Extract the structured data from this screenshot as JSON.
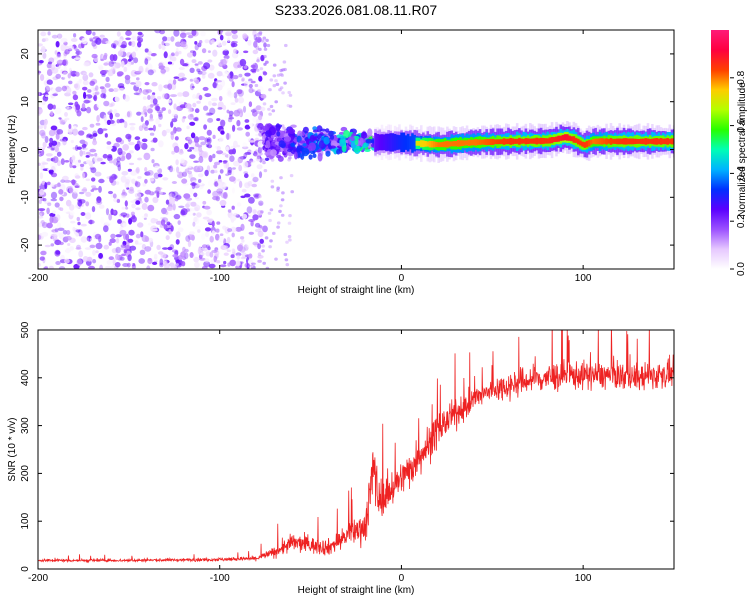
{
  "title": "S233.2026.081.08.11.R07",
  "chart_data": [
    {
      "type": "heatmap",
      "xlabel": "Height of straight line (km)",
      "ylabel": "Frequency (Hz)",
      "xlim": [
        -200,
        150
      ],
      "ylim": [
        -25,
        25
      ],
      "x_ticks": [
        -200,
        -100,
        0,
        100
      ],
      "y_ticks": [
        -20,
        -10,
        0,
        10,
        20
      ],
      "colorbar": {
        "label": "Normalized spectral amplitude",
        "range": [
          0,
          1
        ],
        "ticks": [
          "0.0",
          "0.2",
          "0.4",
          "0.6",
          "0.8"
        ],
        "tick_values": [
          0.0,
          0.2,
          0.4,
          0.6,
          0.8
        ]
      },
      "noise_region_x": [
        -200,
        -75
      ],
      "noise_amplitude_range": [
        0.0,
        0.25
      ],
      "transition_region_x": [
        -75,
        -15
      ],
      "transition_frequency_spread_hz": [
        -8,
        10
      ],
      "signal_band": {
        "x": [
          -15,
          0,
          20,
          40,
          60,
          80,
          90,
          95,
          100,
          105,
          120,
          150
        ],
        "center_frequency_hz": [
          1.5,
          1.5,
          1.0,
          1.5,
          1.7,
          1.8,
          2.6,
          2.0,
          0.9,
          1.7,
          1.7,
          1.7
        ],
        "peak_amplitude": [
          0.5,
          0.7,
          0.85,
          0.85,
          0.9,
          0.9,
          0.95,
          0.9,
          0.9,
          0.85,
          0.9,
          0.9
        ]
      },
      "colors": [
        "#ffffff",
        "#e6c8ff",
        "#9b50ff",
        "#5a00ff",
        "#0030ff",
        "#00b4ff",
        "#00ffb4",
        "#28ff00",
        "#b4ff00",
        "#ffcc00",
        "#ff4000",
        "#ff0040",
        "#ff1a78"
      ]
    },
    {
      "type": "line",
      "xlabel": "Height of straight line (km)",
      "ylabel": "SNR (10 * v/v)",
      "xlim": [
        -200,
        150
      ],
      "ylim": [
        0,
        500
      ],
      "x_ticks": [
        -200,
        -100,
        0,
        100
      ],
      "y_ticks": [
        0,
        100,
        200,
        300,
        400,
        500
      ],
      "series": [
        {
          "name": "SNR",
          "color": "#ee2222",
          "x": [
            -200,
            -150,
            -100,
            -80,
            -70,
            -60,
            -50,
            -40,
            -30,
            -20,
            -17,
            -15,
            -13,
            -10,
            -5,
            0,
            5,
            10,
            15,
            20,
            25,
            30,
            40,
            50,
            60,
            70,
            80,
            90,
            100,
            110,
            120,
            130,
            140,
            150
          ],
          "y": [
            18,
            18,
            20,
            22,
            35,
            55,
            50,
            45,
            70,
            90,
            160,
            220,
            150,
            150,
            170,
            190,
            210,
            240,
            260,
            290,
            310,
            325,
            355,
            375,
            385,
            395,
            400,
            405,
            405,
            405,
            405,
            400,
            405,
            410
          ],
          "noise_amplitude": [
            5,
            5,
            6,
            8,
            20,
            35,
            30,
            30,
            40,
            60,
            120,
            120,
            80,
            60,
            70,
            60,
            70,
            70,
            70,
            60,
            55,
            50,
            45,
            45,
            50,
            50,
            55,
            55,
            50,
            50,
            50,
            50,
            50,
            50
          ]
        }
      ]
    }
  ]
}
